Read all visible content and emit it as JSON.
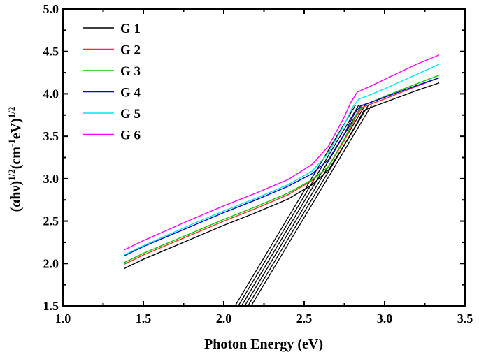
{
  "chart_data": {
    "type": "line",
    "title": "",
    "xlabel": "Photon Energy (eV)",
    "ylabel": {
      "base1": "(αhν)",
      "sup1": "1/2",
      "base2": "(cm",
      "sup2": "-1",
      "base3": "eV)",
      "sup3": "1/2"
    },
    "xlim": [
      1.0,
      3.5
    ],
    "ylim": [
      1.5,
      5.0
    ],
    "xticks": [
      "1.0",
      "1.5",
      "2.0",
      "2.5",
      "3.0",
      "3.5"
    ],
    "xtick_values": [
      1.0,
      1.5,
      2.0,
      2.5,
      3.0,
      3.5
    ],
    "yticks": [
      "1.5",
      "2.0",
      "2.5",
      "3.0",
      "3.5",
      "4.0",
      "4.5",
      "5.0"
    ],
    "ytick_values": [
      1.5,
      2.0,
      2.5,
      3.0,
      3.5,
      4.0,
      4.5,
      5.0
    ],
    "legend_position": "top-left",
    "series": [
      {
        "name": "G 1",
        "color": "#000000",
        "x": [
          1.38,
          1.5,
          1.8,
          2.0,
          2.2,
          2.4,
          2.55,
          2.65,
          2.75,
          2.83,
          2.87,
          2.9,
          3.0,
          3.2,
          3.34
        ],
        "y": [
          1.94,
          2.05,
          2.29,
          2.45,
          2.6,
          2.76,
          2.93,
          3.1,
          3.4,
          3.66,
          3.8,
          3.83,
          3.9,
          4.04,
          4.13
        ]
      },
      {
        "name": "G 2",
        "color": "#ff2a2a",
        "x": [
          1.38,
          1.5,
          1.8,
          2.0,
          2.2,
          2.4,
          2.55,
          2.65,
          2.75,
          2.82,
          2.86,
          2.9,
          3.0,
          3.2,
          3.34
        ],
        "y": [
          1.99,
          2.1,
          2.34,
          2.5,
          2.65,
          2.81,
          2.98,
          3.14,
          3.45,
          3.72,
          3.84,
          3.87,
          3.94,
          4.09,
          4.19
        ]
      },
      {
        "name": "G 3",
        "color": "#00cc00",
        "x": [
          1.38,
          1.5,
          1.8,
          2.0,
          2.2,
          2.4,
          2.55,
          2.65,
          2.75,
          2.82,
          2.86,
          2.9,
          3.0,
          3.2,
          3.34
        ],
        "y": [
          2.01,
          2.12,
          2.36,
          2.52,
          2.67,
          2.83,
          2.99,
          3.14,
          3.47,
          3.74,
          3.86,
          3.89,
          3.97,
          4.12,
          4.22
        ]
      },
      {
        "name": "G 4",
        "color": "#0000cc",
        "x": [
          1.38,
          1.5,
          1.8,
          2.0,
          2.2,
          2.4,
          2.55,
          2.65,
          2.75,
          2.81,
          2.85,
          2.9,
          3.0,
          3.2,
          3.34
        ],
        "y": [
          2.09,
          2.2,
          2.44,
          2.6,
          2.75,
          2.91,
          3.06,
          3.22,
          3.53,
          3.76,
          3.86,
          3.89,
          3.96,
          4.1,
          4.19
        ]
      },
      {
        "name": "G 5",
        "color": "#00e5ee",
        "x": [
          1.38,
          1.5,
          1.8,
          2.0,
          2.2,
          2.4,
          2.55,
          2.65,
          2.75,
          2.8,
          2.84,
          2.9,
          3.0,
          3.2,
          3.34
        ],
        "y": [
          2.1,
          2.21,
          2.46,
          2.62,
          2.77,
          2.93,
          3.09,
          3.3,
          3.64,
          3.84,
          3.94,
          3.98,
          4.06,
          4.23,
          4.35
        ]
      },
      {
        "name": "G 6",
        "color": "#ff00ff",
        "x": [
          1.38,
          1.5,
          1.8,
          2.0,
          2.2,
          2.4,
          2.55,
          2.65,
          2.75,
          2.79,
          2.83,
          2.9,
          3.0,
          3.2,
          3.34
        ],
        "y": [
          2.16,
          2.27,
          2.52,
          2.68,
          2.83,
          2.99,
          3.17,
          3.38,
          3.73,
          3.9,
          4.02,
          4.08,
          4.17,
          4.35,
          4.46
        ]
      }
    ],
    "tangent_lines": [
      {
        "x": [
          2.07,
          2.82
        ],
        "y": [
          1.5,
          3.87
        ]
      },
      {
        "x": [
          2.09,
          2.84
        ],
        "y": [
          1.5,
          3.87
        ]
      },
      {
        "x": [
          2.11,
          2.86
        ],
        "y": [
          1.5,
          3.87
        ]
      },
      {
        "x": [
          2.13,
          2.88
        ],
        "y": [
          1.5,
          3.87
        ]
      },
      {
        "x": [
          2.15,
          2.9
        ],
        "y": [
          1.5,
          3.87
        ]
      },
      {
        "x": [
          2.17,
          2.92
        ],
        "y": [
          1.5,
          3.87
        ]
      }
    ]
  }
}
